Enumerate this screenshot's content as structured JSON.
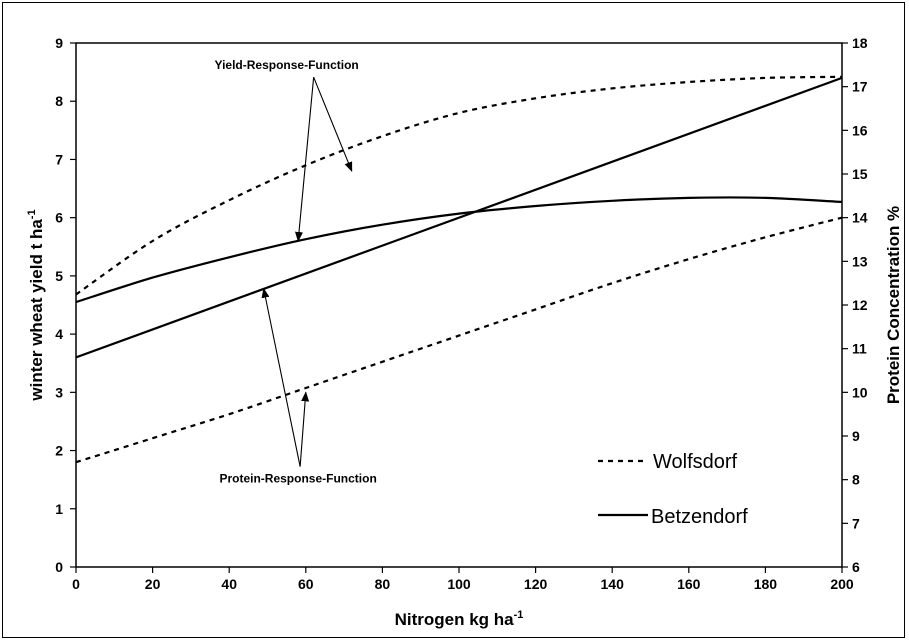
{
  "chart_data": {
    "type": "line",
    "x_label": "Nitrogen kg ha",
    "x_label_sup": "-1",
    "y_left_label": "winter wheat yield t ha",
    "y_left_label_sup": "-1",
    "y_right_label": "Protein Concentration %",
    "xlim": [
      0,
      200
    ],
    "x_ticks": [
      0,
      20,
      40,
      60,
      80,
      100,
      120,
      140,
      160,
      180,
      200
    ],
    "y_left_lim": [
      0,
      9
    ],
    "y_left_ticks": [
      0,
      1,
      2,
      3,
      4,
      5,
      6,
      7,
      8,
      9
    ],
    "y_right_lim": [
      6,
      18
    ],
    "y_right_ticks": [
      6,
      7,
      8,
      9,
      10,
      11,
      12,
      13,
      14,
      15,
      16,
      17,
      18
    ],
    "grid": false,
    "legend_position": "bottom-right",
    "legend": [
      {
        "name": "Wolfsdorf",
        "style": "dashed"
      },
      {
        "name": "Betzendorf",
        "style": "solid"
      }
    ],
    "series": [
      {
        "name": "Wolfsdorf",
        "kind": "yield",
        "axis": "left",
        "style": "dashed",
        "x": [
          0,
          20,
          40,
          60,
          80,
          100,
          120,
          140,
          160,
          180,
          200
        ],
        "y": [
          4.68,
          5.6,
          6.3,
          6.9,
          7.4,
          7.8,
          8.05,
          8.22,
          8.33,
          8.4,
          8.42
        ]
      },
      {
        "name": "Betzendorf",
        "kind": "yield",
        "axis": "left",
        "style": "solid",
        "x": [
          0,
          20,
          40,
          60,
          80,
          100,
          120,
          140,
          160,
          180,
          200
        ],
        "y": [
          4.55,
          4.97,
          5.32,
          5.63,
          5.88,
          6.07,
          6.2,
          6.29,
          6.34,
          6.34,
          6.27
        ]
      },
      {
        "name": "Wolfsdorf",
        "kind": "protein",
        "axis": "right",
        "style": "dashed",
        "x": [
          0,
          20,
          40,
          60,
          80,
          100,
          120,
          140,
          160,
          180,
          200
        ],
        "y": [
          8.4,
          8.95,
          9.5,
          10.1,
          10.7,
          11.3,
          11.9,
          12.5,
          13.05,
          13.55,
          14.0
        ]
      },
      {
        "name": "Betzendorf",
        "kind": "protein",
        "axis": "right",
        "style": "solid",
        "x": [
          0,
          200
        ],
        "y": [
          10.8,
          17.2
        ]
      }
    ],
    "annotations": [
      {
        "text": "Yield-Response-Function",
        "x": 55,
        "y": 8.55,
        "axis": "left",
        "arrows_to": [
          [
            72,
            6.8
          ],
          [
            58,
            5.6
          ]
        ]
      },
      {
        "text": "Protein-Response-Function",
        "x": 58,
        "y": 1.45,
        "axis": "left",
        "arrows_to": [
          [
            49,
            4.78
          ],
          [
            60,
            3.0
          ]
        ]
      }
    ]
  }
}
